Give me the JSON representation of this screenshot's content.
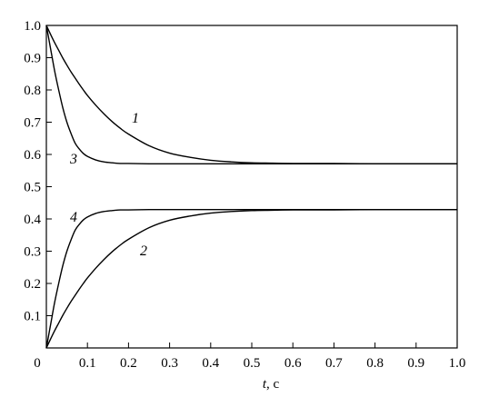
{
  "chart_data": {
    "type": "line",
    "title": "",
    "xlabel": "t, c",
    "xlabel_var": "t",
    "xlabel_unit": ", c",
    "ylabel": "",
    "xlim": [
      0,
      1.0
    ],
    "ylim": [
      0,
      1.0
    ],
    "grid": false,
    "xticks": [
      "0",
      "0.1",
      "0.2",
      "0.3",
      "0.4",
      "0.5",
      "0.6",
      "0.7",
      "0.8",
      "0.9",
      "1.0"
    ],
    "yticks": [
      "0.1",
      "0.2",
      "0.3",
      "0.4",
      "0.5",
      "0.6",
      "0.7",
      "0.8",
      "0.9",
      "1.0"
    ],
    "line_color": "#000000",
    "x": [
      0,
      0.01,
      0.02,
      0.03,
      0.04,
      0.05,
      0.06,
      0.07,
      0.08,
      0.09,
      0.1,
      0.12,
      0.14,
      0.16,
      0.18,
      0.2,
      0.25,
      0.3,
      0.35,
      0.4,
      0.45,
      0.5,
      0.55,
      0.6,
      0.65,
      0.7,
      0.8,
      0.9,
      1.0
    ],
    "series": [
      {
        "name": "1",
        "values": [
          1.0,
          0.973,
          0.947,
          0.923,
          0.899,
          0.877,
          0.856,
          0.837,
          0.818,
          0.8,
          0.783,
          0.753,
          0.726,
          0.702,
          0.681,
          0.663,
          0.627,
          0.604,
          0.591,
          0.582,
          0.577,
          0.574,
          0.573,
          0.572,
          0.572,
          0.572,
          0.571,
          0.571,
          0.571
        ]
      },
      {
        "name": "3",
        "values": [
          1.0,
          0.93,
          0.86,
          0.8,
          0.745,
          0.7,
          0.665,
          0.635,
          0.617,
          0.603,
          0.594,
          0.583,
          0.577,
          0.574,
          0.572,
          0.572,
          0.571,
          0.571,
          0.571,
          0.571,
          0.571,
          0.571,
          0.571,
          0.571,
          0.571,
          0.571,
          0.571,
          0.571,
          0.571
        ]
      },
      {
        "name": "4",
        "values": [
          0.0,
          0.07,
          0.14,
          0.2,
          0.255,
          0.3,
          0.335,
          0.365,
          0.383,
          0.397,
          0.406,
          0.417,
          0.423,
          0.426,
          0.428,
          0.428,
          0.429,
          0.429,
          0.429,
          0.429,
          0.429,
          0.429,
          0.429,
          0.429,
          0.429,
          0.429,
          0.429,
          0.429,
          0.429
        ]
      },
      {
        "name": "2",
        "values": [
          0.0,
          0.027,
          0.053,
          0.077,
          0.101,
          0.123,
          0.144,
          0.163,
          0.182,
          0.2,
          0.217,
          0.247,
          0.274,
          0.298,
          0.319,
          0.337,
          0.373,
          0.396,
          0.409,
          0.418,
          0.423,
          0.426,
          0.427,
          0.428,
          0.428,
          0.428,
          0.429,
          0.429,
          0.429
        ]
      }
    ]
  }
}
